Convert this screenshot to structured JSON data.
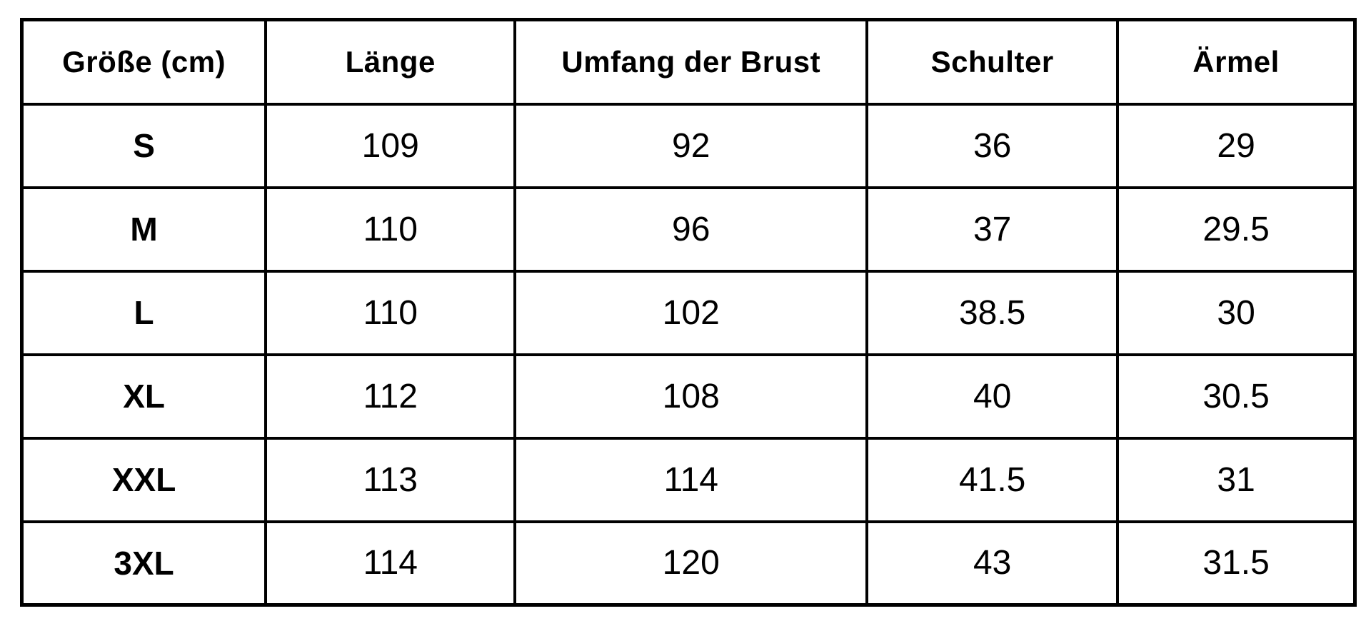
{
  "table": {
    "headers": [
      "Größe (cm)",
      "Länge",
      "Umfang der Brust",
      "Schulter",
      "Ärmel"
    ],
    "rows": [
      {
        "label": "S",
        "cells": [
          "109",
          "92",
          "36",
          "29"
        ]
      },
      {
        "label": "M",
        "cells": [
          "110",
          "96",
          "37",
          "29.5"
        ]
      },
      {
        "label": "L",
        "cells": [
          "110",
          "102",
          "38.5",
          "30"
        ]
      },
      {
        "label": "XL",
        "cells": [
          "112",
          "108",
          "40",
          "30.5"
        ]
      },
      {
        "label": "XXL",
        "cells": [
          "113",
          "114",
          "41.5",
          "31"
        ]
      },
      {
        "label": "3XL",
        "cells": [
          "114",
          "120",
          "43",
          "31.5"
        ]
      }
    ]
  },
  "chart_data": {
    "type": "table",
    "columns": [
      "Größe (cm)",
      "Länge",
      "Umfang der Brust",
      "Schulter",
      "Ärmel"
    ],
    "rows": [
      [
        "S",
        109,
        92,
        36,
        29
      ],
      [
        "M",
        110,
        96,
        37,
        29.5
      ],
      [
        "L",
        110,
        102,
        38.5,
        30
      ],
      [
        "XL",
        112,
        108,
        40,
        30.5
      ],
      [
        "XXL",
        113,
        114,
        41.5,
        31
      ],
      [
        "3XL",
        114,
        120,
        43,
        31.5
      ]
    ]
  },
  "colors": {
    "border": "#000000",
    "text": "#000000",
    "background": "#ffffff"
  }
}
